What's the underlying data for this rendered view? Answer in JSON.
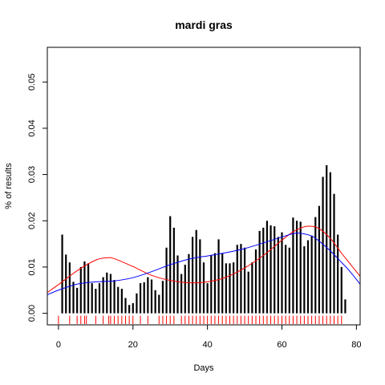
{
  "chart_data": {
    "type": "bar",
    "title": "mardi gras",
    "xlabel": "Days",
    "ylabel": "% of results",
    "xlim": [
      -3,
      81
    ],
    "ylim": [
      -0.0025,
      0.0575
    ],
    "xticks": [
      0,
      20,
      40,
      60,
      80
    ],
    "xtick_labels": [
      "0",
      "20",
      "40",
      "60",
      "80"
    ],
    "yticks": [
      0.0,
      0.01,
      0.02,
      0.03,
      0.04,
      0.05
    ],
    "ytick_labels": [
      "0.00",
      "0.01",
      "0.02",
      "0.03",
      "0.04",
      "0.05"
    ],
    "grid": false,
    "bars": {
      "x": [
        1,
        2,
        3,
        4,
        5,
        6,
        7,
        8,
        9,
        10,
        11,
        12,
        13,
        14,
        15,
        16,
        17,
        18,
        19,
        20,
        21,
        22,
        23,
        24,
        25,
        26,
        27,
        28,
        29,
        30,
        31,
        32,
        33,
        34,
        35,
        36,
        37,
        38,
        39,
        40,
        41,
        42,
        43,
        44,
        45,
        46,
        47,
        48,
        49,
        50,
        51,
        52,
        53,
        54,
        55,
        56,
        57,
        58,
        59,
        60,
        61,
        62,
        63,
        64,
        65,
        66,
        67,
        68,
        69,
        70,
        71,
        72,
        73,
        74,
        75,
        76,
        77
      ],
      "values": [
        0.017,
        0.0127,
        0.011,
        0.0068,
        0.0055,
        0.01,
        0.0112,
        0.0108,
        0.0065,
        0.0053,
        0.0065,
        0.0078,
        0.0088,
        0.0085,
        0.0072,
        0.0057,
        0.0053,
        0.0033,
        0.0018,
        0.0022,
        0.0043,
        0.0065,
        0.0067,
        0.0078,
        0.0073,
        0.005,
        0.004,
        0.007,
        0.0142,
        0.021,
        0.0185,
        0.0125,
        0.0085,
        0.0105,
        0.0128,
        0.0165,
        0.018,
        0.016,
        0.011,
        0.0065,
        0.0125,
        0.013,
        0.016,
        0.013,
        0.0108,
        0.0108,
        0.011,
        0.0148,
        0.015,
        0.0142,
        0.009,
        0.011,
        0.0138,
        0.0178,
        0.0185,
        0.02,
        0.019,
        0.0188,
        0.0165,
        0.0175,
        0.0148,
        0.0142,
        0.0207,
        0.02,
        0.0198,
        0.0145,
        0.0158,
        0.0168,
        0.0208,
        0.0232,
        0.0295,
        0.032,
        0.0305,
        0.0258,
        0.017,
        0.01,
        0.003
      ],
      "color": "#000000"
    },
    "rug": {
      "x": [
        0,
        3,
        5,
        6,
        7,
        7.5,
        10,
        12,
        13.5,
        14,
        15,
        16,
        17,
        18,
        19,
        20,
        22,
        24,
        27,
        28,
        29,
        30,
        31,
        33,
        34,
        35,
        36,
        37,
        38,
        39,
        40,
        41,
        42,
        43,
        44,
        45,
        46,
        47,
        48,
        49,
        50,
        51,
        52,
        53,
        54,
        55,
        56,
        57,
        58,
        59,
        60,
        61,
        62,
        63,
        64,
        65,
        66,
        67,
        68,
        69,
        70,
        71,
        72,
        73,
        74,
        75,
        76
      ],
      "color": "#ff0000"
    },
    "series": [
      {
        "color": "#ff0000",
        "x": [
          -3,
          0,
          5,
          10,
          13,
          15,
          20,
          25,
          30,
          35,
          40,
          45,
          50,
          55,
          60,
          63,
          66,
          68,
          70,
          73,
          76,
          78,
          81
        ],
        "values": [
          0.0045,
          0.0062,
          0.0092,
          0.0115,
          0.012,
          0.0118,
          0.0101,
          0.0082,
          0.0071,
          0.0066,
          0.0068,
          0.0078,
          0.0098,
          0.0125,
          0.0158,
          0.0176,
          0.0187,
          0.0188,
          0.0183,
          0.0162,
          0.013,
          0.011,
          0.008
        ]
      },
      {
        "color": "#0000ff",
        "x": [
          -3,
          0,
          5,
          10,
          15,
          20,
          25,
          30,
          35,
          40,
          45,
          50,
          55,
          60,
          63,
          65,
          68,
          70,
          73,
          76,
          78,
          81
        ],
        "values": [
          0.004,
          0.005,
          0.0063,
          0.0068,
          0.007,
          0.0077,
          0.009,
          0.0105,
          0.0117,
          0.0124,
          0.0131,
          0.014,
          0.0152,
          0.0165,
          0.0172,
          0.0173,
          0.0167,
          0.0156,
          0.0135,
          0.011,
          0.0093,
          0.0063
        ]
      }
    ]
  }
}
